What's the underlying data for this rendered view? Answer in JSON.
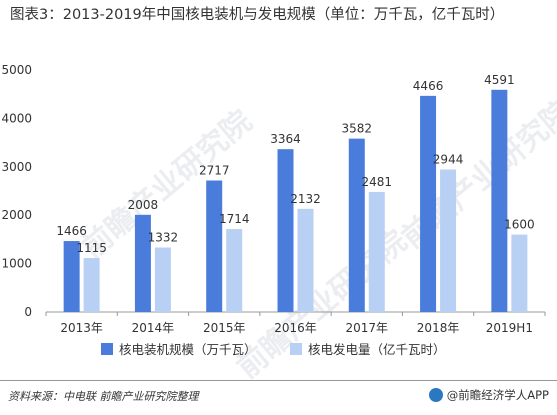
{
  "title": "图表3：2013-2019年中国核电装机与发电规模（单位：万千瓦，亿千瓦时）",
  "source": "资料来源：中电联 前瞻产业研究院整理",
  "brand": "@前瞻经济学人APP",
  "watermark": "前瞻产业研究院",
  "colors": {
    "series1": "#4a7ddb",
    "series2": "#b8d0f3",
    "axis": "#999999",
    "text": "#333333"
  },
  "chart_data": {
    "type": "bar",
    "categories": [
      "2013年",
      "2014年",
      "2015年",
      "2016年",
      "2017年",
      "2018年",
      "2019H1"
    ],
    "series": [
      {
        "name": "核电装机规模（万千瓦）",
        "values": [
          1466,
          2008,
          2717,
          3364,
          3582,
          4466,
          4591
        ]
      },
      {
        "name": "核电发电量（亿千瓦时）",
        "values": [
          1115,
          1332,
          1714,
          2132,
          2481,
          2944,
          1600
        ]
      }
    ],
    "yticks": [
      0,
      1000,
      2000,
      3000,
      4000,
      5000
    ],
    "ylim": [
      0,
      5000
    ],
    "grid": false,
    "legend": "bottom"
  }
}
